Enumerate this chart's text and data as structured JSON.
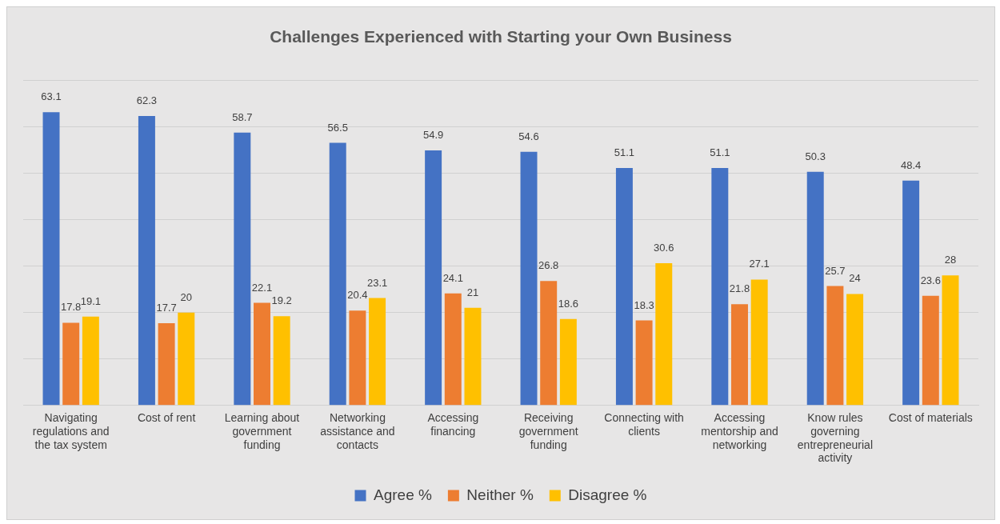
{
  "chart_data": {
    "type": "bar",
    "title": "Challenges Experienced with Starting your Own Business",
    "categories": [
      "Navigating regulations and the tax system",
      "Cost of rent",
      "Learning about government funding",
      "Networking assistance and contacts",
      "Accessing financing",
      "Receiving government funding",
      "Connecting with clients",
      "Accessing mentorship and networking",
      "Know rules governing entrepreneurial activity",
      "Cost of materials"
    ],
    "series": [
      {
        "name": "Agree %",
        "color": "#4472c4",
        "values": [
          63.1,
          62.3,
          58.7,
          56.5,
          54.9,
          54.6,
          51.1,
          51.1,
          50.3,
          48.4
        ]
      },
      {
        "name": "Neither %",
        "color": "#ed7d31",
        "values": [
          17.8,
          17.7,
          22.1,
          20.4,
          24.1,
          26.8,
          18.3,
          21.8,
          25.7,
          23.6
        ]
      },
      {
        "name": "Disagree %",
        "color": "#ffc000",
        "values": [
          19.1,
          20,
          19.2,
          23.1,
          21,
          18.6,
          30.6,
          27.1,
          24,
          28
        ]
      }
    ],
    "ylim": [
      0,
      70
    ],
    "yticks": [
      {
        "value": 0,
        "label": null
      },
      {
        "value": 10,
        "label": null
      },
      {
        "value": 20,
        "label": null
      },
      {
        "value": 30,
        "label": null
      },
      {
        "value": 40,
        "label": null
      },
      {
        "value": 50,
        "label": null
      },
      {
        "value": 60,
        "label": null
      },
      {
        "value": 70,
        "label": null
      }
    ],
    "tick_labels": "x",
    "grid": "y",
    "legend": "bottom",
    "data_labels": true
  }
}
